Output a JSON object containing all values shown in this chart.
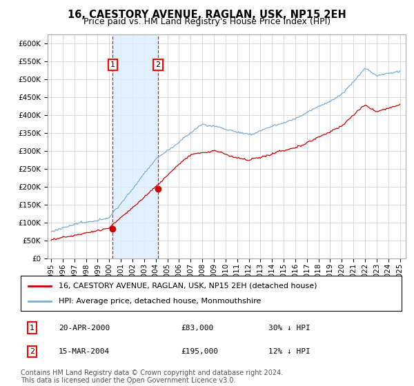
{
  "title": "16, CAESTORY AVENUE, RAGLAN, USK, NP15 2EH",
  "subtitle": "Price paid vs. HM Land Registry's House Price Index (HPI)",
  "legend_label_red": "16, CAESTORY AVENUE, RAGLAN, USK, NP15 2EH (detached house)",
  "legend_label_blue": "HPI: Average price, detached house, Monmouthshire",
  "annotation1_date": "20-APR-2000",
  "annotation1_price": "£83,000",
  "annotation1_hpi": "30% ↓ HPI",
  "annotation1_year": 2000.3,
  "annotation1_value": 83000,
  "annotation2_date": "15-MAR-2004",
  "annotation2_price": "£195,000",
  "annotation2_hpi": "12% ↓ HPI",
  "annotation2_year": 2004.2,
  "annotation2_value": 195000,
  "footer": "Contains HM Land Registry data © Crown copyright and database right 2024.\nThis data is licensed under the Open Government Licence v3.0.",
  "red_color": "#cc0000",
  "blue_color": "#7aadd4",
  "shade_color": "#ddeeff",
  "vline_color": "#cc0000",
  "grid_color": "#cccccc",
  "background_color": "#ffffff",
  "title_fontsize": 10.5,
  "subtitle_fontsize": 9,
  "tick_fontsize": 7.5,
  "legend_fontsize": 8,
  "footer_fontsize": 7,
  "ylim": [
    0,
    625000
  ],
  "yticks": [
    0,
    50000,
    100000,
    150000,
    200000,
    250000,
    300000,
    350000,
    400000,
    450000,
    500000,
    550000,
    600000
  ],
  "xmin": 1994.7,
  "xmax": 2025.5
}
